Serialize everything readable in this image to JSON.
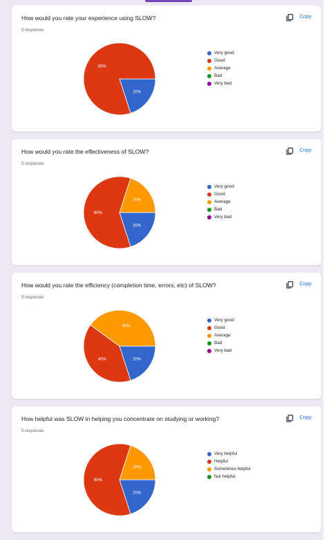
{
  "colors": {
    "very_good": "#3366cc",
    "good": "#dc3912",
    "average": "#ff9900",
    "bad": "#109618",
    "very_bad": "#990099",
    "accent": "#7248b9",
    "link": "#1a73e8"
  },
  "copy_label": "Copy",
  "chart_data": [
    {
      "type": "pie",
      "title": "How would you rate your experience using SLOW?",
      "subtitle": "5 responses",
      "categories": [
        "Very good",
        "Good",
        "Average",
        "Bad",
        "Very bad"
      ],
      "values": [
        20,
        80,
        0,
        0,
        0
      ],
      "slice_labels": [
        "20%",
        "80%",
        "",
        "",
        ""
      ],
      "colors": [
        "#3366cc",
        "#dc3912",
        "#ff9900",
        "#109618",
        "#990099"
      ],
      "legend": "right"
    },
    {
      "type": "pie",
      "title": "How would you rate the effectiveness of SLOW?",
      "subtitle": "5 responses",
      "categories": [
        "Very good",
        "Good",
        "Average",
        "Bad",
        "Very bad"
      ],
      "values": [
        20,
        60,
        20,
        0,
        0
      ],
      "slice_labels": [
        "20%",
        "60%",
        "20%",
        "",
        ""
      ],
      "colors": [
        "#3366cc",
        "#dc3912",
        "#ff9900",
        "#109618",
        "#990099"
      ],
      "legend": "right"
    },
    {
      "type": "pie",
      "title": "How would you rate the efficiency (completion time, errors, etc) of SLOW?",
      "subtitle": "5 responses",
      "categories": [
        "Very good",
        "Good",
        "Average",
        "Bad",
        "Very bad"
      ],
      "values": [
        20,
        40,
        40,
        0,
        0
      ],
      "slice_labels": [
        "20%",
        "40%",
        "40%",
        "",
        ""
      ],
      "colors": [
        "#3366cc",
        "#dc3912",
        "#ff9900",
        "#109618",
        "#990099"
      ],
      "legend": "right"
    },
    {
      "type": "pie",
      "title": "How helpful was SLOW in helping you concentrate on studying or working?",
      "subtitle": "5 responses",
      "categories": [
        "Very helpful",
        "Helpful",
        "Sometimes helpful",
        "Not helpful"
      ],
      "values": [
        20,
        60,
        20,
        0
      ],
      "slice_labels": [
        "20%",
        "60%",
        "20%",
        ""
      ],
      "colors": [
        "#3366cc",
        "#dc3912",
        "#ff9900",
        "#109618"
      ],
      "legend": "right"
    }
  ]
}
